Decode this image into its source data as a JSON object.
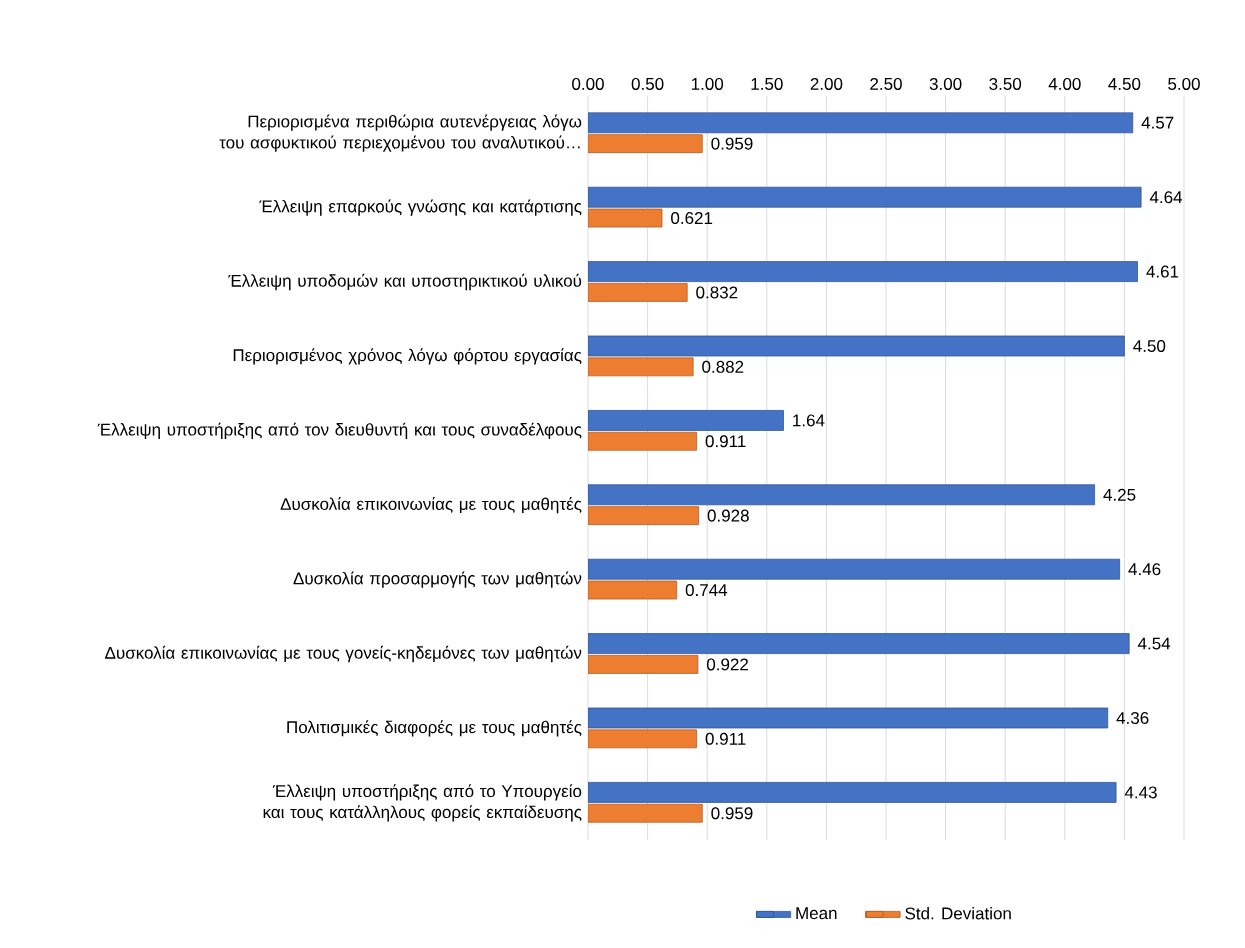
{
  "chart_data": {
    "type": "bar",
    "orientation": "horizontal",
    "categories": [
      "Περιορισμένα περιθώρια αυτενέργειας λόγω του ασφυκτικού περιεχομένου του αναλυτικού…",
      "Έλλειψη επαρκούς γνώσης και κατάρτισης",
      "Έλλειψη υποδομών και υποστηρικτικού υλικού",
      "Περιορισμένος χρόνος λόγω φόρτου εργασίας",
      "Έλλειψη υποστήριξης από τον διευθυντή και τους συναδέλφους",
      "Δυσκολία επικοινωνίας με τους μαθητές",
      "Δυσκολία προσαρμογής των μαθητών",
      "Δυσκολία επικοινωνίας με τους γονείς-κηδεμόνες των μαθητών",
      "Πολιτισμικές διαφορές με τους μαθητές",
      "Έλλειψη υποστήριξης από το Υπουργείο και τους κατάλληλους φορείς εκπαίδευσης"
    ],
    "series": [
      {
        "name": "Mean",
        "color": "#4472c4",
        "values": [
          4.57,
          4.64,
          4.61,
          4.5,
          1.64,
          4.25,
          4.46,
          4.54,
          4.36,
          4.43
        ],
        "value_labels": [
          "4.57",
          "4.64",
          "4.61",
          "4.50",
          "1.64",
          "4.25",
          "4.46",
          "4.54",
          "4.36",
          "4.43"
        ]
      },
      {
        "name": "Std. Deviation",
        "color": "#ed7d31",
        "values": [
          0.959,
          0.621,
          0.832,
          0.882,
          0.911,
          0.928,
          0.744,
          0.922,
          0.911,
          0.959
        ],
        "value_labels": [
          "0.959",
          "0.621",
          "0.832",
          "0.882",
          "0.911",
          "0.928",
          "0.744",
          "0.922",
          "0.911",
          "0.959"
        ]
      }
    ],
    "xlim": [
      0,
      5
    ],
    "xticks": [
      {
        "value": 0,
        "label": "0.00"
      },
      {
        "value": 0.5,
        "label": "0.50"
      },
      {
        "value": 1,
        "label": "1.00"
      },
      {
        "value": 1.5,
        "label": "1.50"
      },
      {
        "value": 2,
        "label": "2.00"
      },
      {
        "value": 2.5,
        "label": "2.50"
      },
      {
        "value": 3,
        "label": "3.00"
      },
      {
        "value": 3.5,
        "label": "3.50"
      },
      {
        "value": 4,
        "label": "4.00"
      },
      {
        "value": 4.5,
        "label": "4.50"
      },
      {
        "value": 5,
        "label": "5.00"
      }
    ],
    "grid": "x",
    "legend": "bottom"
  }
}
